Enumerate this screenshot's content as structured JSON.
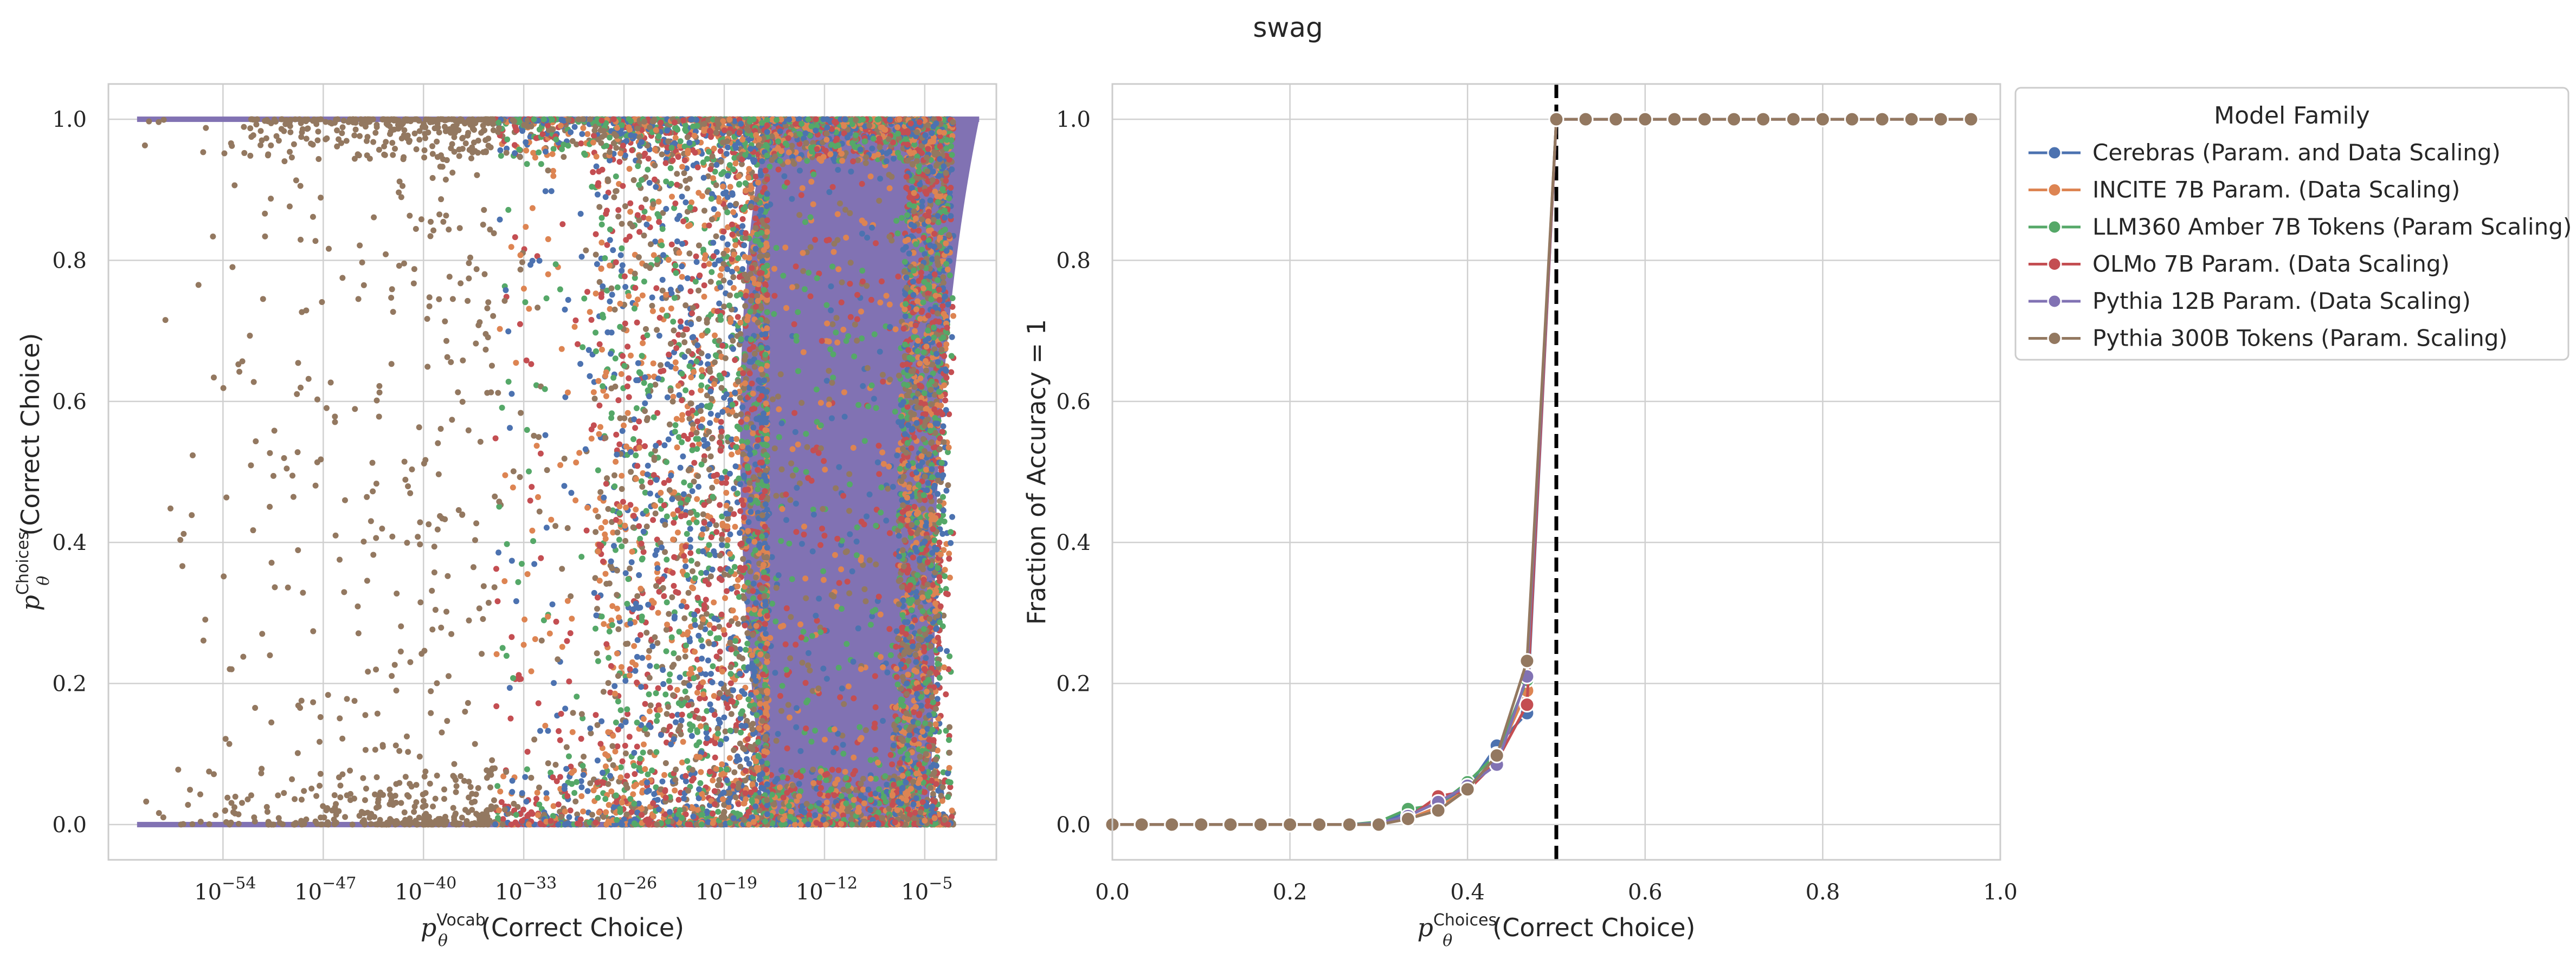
{
  "suptitle": "swag",
  "chart_data": [
    {
      "type": "scatter",
      "xlabel": "p_θ^Vocab(Correct Choice)",
      "xlabel_parts": {
        "base": "p",
        "sub": "θ",
        "sup": "Vocab",
        "rest": "(Correct Choice)"
      },
      "ylabel_parts": {
        "base": "p",
        "sub": "θ",
        "sup": "Choices",
        "rest": "(Correct Choice)"
      },
      "x_scale": "log",
      "xlim": [
        1e-62,
        1
      ],
      "ylim": [
        -0.05,
        1.05
      ],
      "x_ticks": [
        {
          "exp": -54,
          "label_base": "10",
          "label_exp": "−54"
        },
        {
          "exp": -47,
          "label_base": "10",
          "label_exp": "−47"
        },
        {
          "exp": -40,
          "label_base": "10",
          "label_exp": "−40"
        },
        {
          "exp": -33,
          "label_base": "10",
          "label_exp": "−33"
        },
        {
          "exp": -26,
          "label_base": "10",
          "label_exp": "−26"
        },
        {
          "exp": -19,
          "label_base": "10",
          "label_exp": "−19"
        },
        {
          "exp": -12,
          "label_base": "10",
          "label_exp": "−12"
        },
        {
          "exp": -5,
          "label_base": "10",
          "label_exp": "−5"
        }
      ],
      "y_ticks": [
        {
          "value": 0.0,
          "label": "0.0"
        },
        {
          "value": 0.2,
          "label": "0.2"
        },
        {
          "value": 0.4,
          "label": "0.4"
        },
        {
          "value": 0.6,
          "label": "0.6"
        },
        {
          "value": 0.8,
          "label": "0.8"
        },
        {
          "value": 1.0,
          "label": "1.0"
        }
      ],
      "grid": true,
      "note": "Dense point clouds per model family; points cluster near y=0 and y=1 and become dense for x above 1e-25, with a solid band from about 1e-15 to 1e-4.",
      "series": [
        {
          "name": "Cerebras (Param. and Data Scaling)",
          "color": "#4c72b0"
        },
        {
          "name": "INCITE 7B Param. (Data Scaling)",
          "color": "#dd8452"
        },
        {
          "name": "LLM360 Amber 7B Tokens (Param Scaling)",
          "color": "#55a868"
        },
        {
          "name": "OLMo 7B Param. (Data Scaling)",
          "color": "#c44e52"
        },
        {
          "name": "Pythia 300B Tokens (Param. Scaling)",
          "color": "#937860"
        },
        {
          "name": "Pythia 12B Param. (Data Scaling)",
          "color": "#8172b3"
        }
      ]
    },
    {
      "type": "line",
      "xlabel_parts": {
        "base": "p",
        "sub": "θ",
        "sup": "Choices",
        "rest": "(Correct Choice)"
      },
      "ylabel": "Fraction of Accuracy = 1",
      "xlim": [
        0.0,
        1.0
      ],
      "ylim": [
        -0.05,
        1.05
      ],
      "x_ticks": [
        {
          "value": 0.0,
          "label": "0.0"
        },
        {
          "value": 0.2,
          "label": "0.2"
        },
        {
          "value": 0.4,
          "label": "0.4"
        },
        {
          "value": 0.6,
          "label": "0.6"
        },
        {
          "value": 0.8,
          "label": "0.8"
        },
        {
          "value": 1.0,
          "label": "1.0"
        }
      ],
      "y_ticks": [
        {
          "value": 0.0,
          "label": "0.0"
        },
        {
          "value": 0.2,
          "label": "0.2"
        },
        {
          "value": 0.4,
          "label": "0.4"
        },
        {
          "value": 0.6,
          "label": "0.6"
        },
        {
          "value": 0.8,
          "label": "0.8"
        },
        {
          "value": 1.0,
          "label": "1.0"
        }
      ],
      "vline": {
        "x": 0.5,
        "style": "dashed",
        "color": "#000000"
      },
      "grid": true,
      "x": [
        0.0,
        0.033,
        0.067,
        0.1,
        0.133,
        0.167,
        0.2,
        0.233,
        0.267,
        0.3,
        0.333,
        0.367,
        0.4,
        0.433,
        0.467,
        0.5,
        0.533,
        0.567,
        0.6,
        0.633,
        0.667,
        0.7,
        0.733,
        0.767,
        0.8,
        0.833,
        0.867,
        0.9,
        0.933,
        0.967
      ],
      "series": [
        {
          "name": "Cerebras (Param. and Data Scaling)",
          "color": "#4c72b0",
          "values": [
            0,
            0,
            0,
            0,
            0,
            0,
            0,
            0,
            0,
            0.002,
            0.018,
            0.03,
            0.052,
            0.112,
            0.158,
            1,
            1,
            1,
            1,
            1,
            1,
            1,
            1,
            1,
            1,
            1,
            1,
            1,
            1,
            1
          ]
        },
        {
          "name": "INCITE 7B Param. (Data Scaling)",
          "color": "#dd8452",
          "values": [
            0,
            0,
            0,
            0,
            0,
            0,
            0,
            0,
            0,
            0,
            0.008,
            0.025,
            0.05,
            0.095,
            0.19,
            1,
            1,
            1,
            1,
            1,
            1,
            1,
            1,
            1,
            1,
            1,
            1,
            1,
            1,
            1
          ]
        },
        {
          "name": "LLM360 Amber 7B Tokens (Param Scaling)",
          "color": "#55a868",
          "values": [
            0,
            0,
            0,
            0,
            0,
            0,
            0,
            0,
            0,
            0.004,
            0.022,
            0.028,
            0.06,
            0.1,
            0.205,
            1,
            1,
            1,
            1,
            1,
            1,
            1,
            1,
            1,
            1,
            1,
            1,
            1,
            1,
            1
          ]
        },
        {
          "name": "OLMo 7B Param. (Data Scaling)",
          "color": "#c44e52",
          "values": [
            0,
            0,
            0,
            0,
            0,
            0,
            0,
            0,
            0,
            0,
            0.01,
            0.04,
            0.048,
            0.09,
            0.17,
            1,
            1,
            1,
            1,
            1,
            1,
            1,
            1,
            1,
            1,
            1,
            1,
            1,
            1,
            1
          ]
        },
        {
          "name": "Pythia 12B Param. (Data Scaling)",
          "color": "#8172b3",
          "values": [
            0,
            0,
            0,
            0,
            0,
            0,
            0,
            0,
            0,
            0.002,
            0.012,
            0.032,
            0.055,
            0.085,
            0.21,
            1,
            1,
            1,
            1,
            1,
            1,
            1,
            1,
            1,
            1,
            1,
            1,
            1,
            1,
            1
          ]
        },
        {
          "name": "Pythia 300B Tokens (Param. Scaling)",
          "color": "#937860",
          "values": [
            0,
            0,
            0,
            0,
            0,
            0,
            0,
            0,
            0,
            0,
            0.008,
            0.02,
            0.05,
            0.098,
            0.232,
            1,
            1,
            1,
            1,
            1,
            1,
            1,
            1,
            1,
            1,
            1,
            1,
            1,
            1,
            1
          ]
        }
      ]
    }
  ],
  "legend": {
    "title": "Model Family",
    "location": "outside right of right panel",
    "entries": [
      {
        "label": "Cerebras (Param. and Data Scaling)",
        "color": "#4c72b0"
      },
      {
        "label": "INCITE 7B Param. (Data Scaling)",
        "color": "#dd8452"
      },
      {
        "label": "LLM360 Amber 7B Tokens (Param Scaling)",
        "color": "#55a868"
      },
      {
        "label": "OLMo 7B Param. (Data Scaling)",
        "color": "#c44e52"
      },
      {
        "label": "Pythia 12B Param. (Data Scaling)",
        "color": "#8172b3"
      },
      {
        "label": "Pythia 300B Tokens (Param. Scaling)",
        "color": "#937860"
      }
    ]
  }
}
